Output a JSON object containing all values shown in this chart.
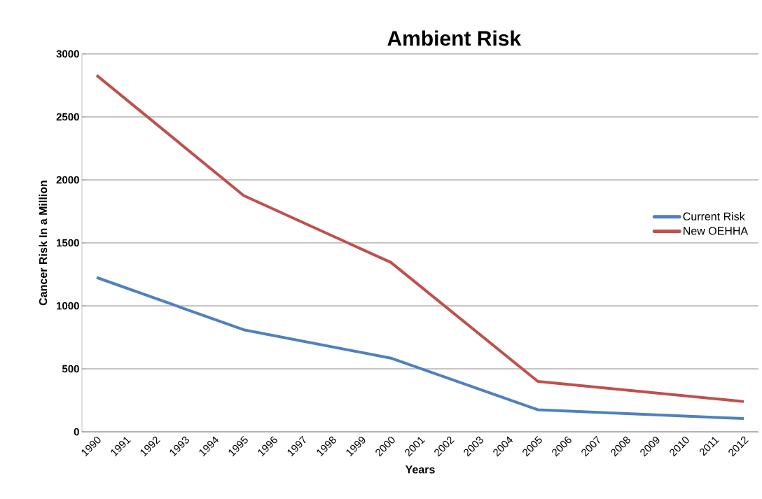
{
  "chart_data": {
    "type": "line",
    "title": "Ambient Risk",
    "xlabel": "Years",
    "ylabel": "Cancer Risk In a Million",
    "series": [
      {
        "name": "Current Risk",
        "color": "#4f81bd",
        "x": [
          1990,
          1995,
          2000,
          2005,
          2012
        ],
        "values": [
          1225,
          810,
          585,
          175,
          105
        ]
      },
      {
        "name": "New OEHHA",
        "color": "#c0504d",
        "x": [
          1990,
          1995,
          2000,
          2005,
          2012
        ],
        "values": [
          2830,
          1875,
          1345,
          400,
          240
        ]
      }
    ],
    "xlim": [
      1989.5,
      2012.5
    ],
    "xticks": [
      1990,
      1991,
      1992,
      1993,
      1994,
      1995,
      1996,
      1997,
      1998,
      1999,
      2000,
      2001,
      2002,
      2003,
      2004,
      2005,
      2006,
      2007,
      2008,
      2009,
      2010,
      2011,
      2012
    ],
    "ylim": [
      0,
      3000
    ],
    "yticks": [
      0,
      500,
      1000,
      1500,
      2000,
      2500,
      3000
    ],
    "grid": "y",
    "legend": "right",
    "marker": "none",
    "line_style": "solid"
  }
}
